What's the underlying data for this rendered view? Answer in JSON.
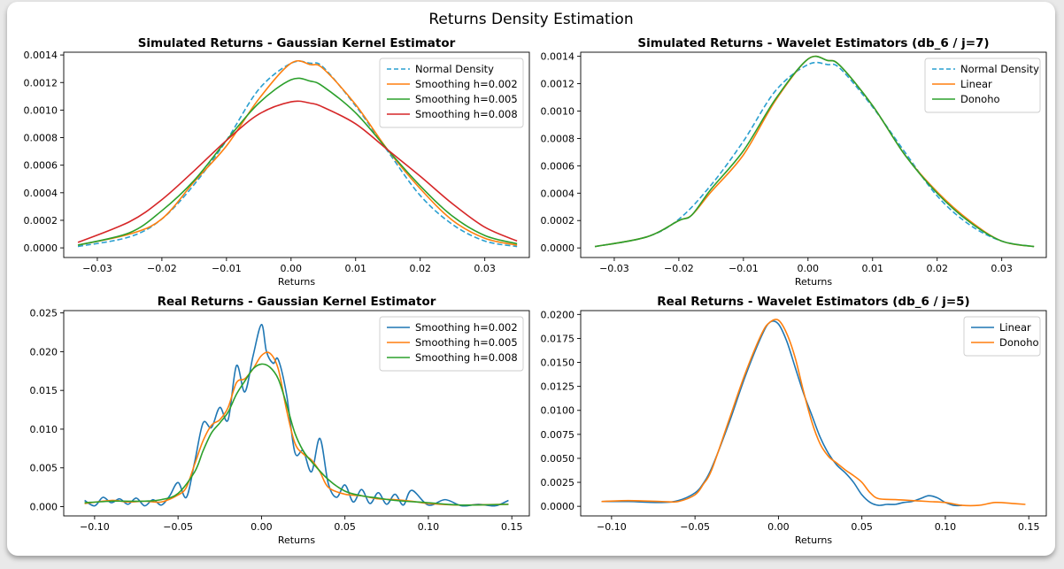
{
  "figure": {
    "title": "Returns Density Estimation"
  },
  "colors": {
    "blue": "#1f77b4",
    "normal": "#2a9fd0",
    "orange": "#ff7f0e",
    "green": "#2ca02c",
    "red": "#d62728"
  },
  "chart_data": [
    {
      "type": "line",
      "title": "Simulated Returns - Gaussian Kernel Estimator",
      "xlabel": "Returns",
      "ylabel": "",
      "xlim": [
        -0.0352,
        0.0369
      ],
      "ylim": [
        -7e-05,
        0.00142
      ],
      "xticks": [
        -0.03,
        -0.02,
        -0.01,
        0.0,
        0.01,
        0.02,
        0.03
      ],
      "xtick_labels": [
        "−0.03",
        "−0.02",
        "−0.01",
        "0.00",
        "0.01",
        "0.02",
        "0.03"
      ],
      "yticks": [
        0,
        0.0002,
        0.0004,
        0.0006,
        0.0008,
        0.001,
        0.0012,
        0.0014
      ],
      "ytick_labels": [
        "0.0000",
        "0.0002",
        "0.0004",
        "0.0006",
        "0.0008",
        "0.0010",
        "0.0012",
        "0.0014"
      ],
      "legend_position": "top-right",
      "series": [
        {
          "name": "Normal Density",
          "color": "#2a9fd0",
          "dash": true,
          "x": [
            -0.033,
            -0.025,
            -0.02,
            -0.015,
            -0.01,
            -0.005,
            0.0,
            0.003,
            0.005,
            0.01,
            0.015,
            0.02,
            0.025,
            0.03,
            0.035
          ],
          "y": [
            1e-05,
            8e-05,
            0.00021,
            0.00046,
            0.00078,
            0.00115,
            0.00134,
            0.00134,
            0.00131,
            0.00103,
            0.0007,
            0.00038,
            0.00017,
            5e-05,
            1e-05
          ]
        },
        {
          "name": "Smoothing h=0.002",
          "color": "#ff7f0e",
          "x": [
            -0.033,
            -0.025,
            -0.02,
            -0.015,
            -0.01,
            -0.005,
            0.0,
            0.003,
            0.005,
            0.01,
            0.015,
            0.02,
            0.025,
            0.03,
            0.035
          ],
          "y": [
            2e-05,
            0.0001,
            0.00021,
            0.00048,
            0.00074,
            0.00108,
            0.00134,
            0.00133,
            0.0013,
            0.00104,
            0.00071,
            0.00043,
            0.0002,
            7e-05,
            2e-05
          ]
        },
        {
          "name": "Smoothing h=0.005",
          "color": "#2ca02c",
          "x": [
            -0.033,
            -0.025,
            -0.02,
            -0.015,
            -0.01,
            -0.005,
            0.0,
            0.003,
            0.005,
            0.01,
            0.015,
            0.02,
            0.025,
            0.03,
            0.035
          ],
          "y": [
            2e-05,
            0.00011,
            0.00027,
            0.00049,
            0.00078,
            0.00105,
            0.00122,
            0.00121,
            0.00117,
            0.00098,
            0.00071,
            0.00045,
            0.00023,
            9e-05,
            3e-05
          ]
        },
        {
          "name": "Smoothing h=0.008",
          "color": "#d62728",
          "x": [
            -0.033,
            -0.025,
            -0.02,
            -0.015,
            -0.01,
            -0.005,
            0.0,
            0.003,
            0.005,
            0.01,
            0.015,
            0.02,
            0.025,
            0.03,
            0.035
          ],
          "y": [
            4e-05,
            0.00019,
            0.00035,
            0.00056,
            0.00078,
            0.00097,
            0.00106,
            0.00105,
            0.00102,
            0.0009,
            0.00071,
            0.00052,
            0.00032,
            0.00015,
            5e-05
          ]
        }
      ]
    },
    {
      "type": "line",
      "title": "Simulated Returns - Wavelet Estimators (db_6 / j=7)",
      "xlabel": "Returns",
      "ylabel": "",
      "xlim": [
        -0.0352,
        0.0369
      ],
      "ylim": [
        -7e-05,
        0.00143
      ],
      "xticks": [
        -0.03,
        -0.02,
        -0.01,
        0.0,
        0.01,
        0.02,
        0.03
      ],
      "xtick_labels": [
        "−0.03",
        "−0.02",
        "−0.01",
        "0.00",
        "0.01",
        "0.02",
        "0.03"
      ],
      "yticks": [
        0,
        0.0002,
        0.0004,
        0.0006,
        0.0008,
        0.001,
        0.0012,
        0.0014
      ],
      "ytick_labels": [
        "0.0000",
        "0.0002",
        "0.0004",
        "0.0006",
        "0.0008",
        "0.0010",
        "0.0012",
        "0.0014"
      ],
      "legend_position": "top-right",
      "series": [
        {
          "name": "Normal Density",
          "color": "#2a9fd0",
          "dash": true,
          "x": [
            -0.033,
            -0.025,
            -0.02,
            -0.015,
            -0.01,
            -0.005,
            0.0,
            0.003,
            0.005,
            0.01,
            0.015,
            0.02,
            0.025,
            0.03,
            0.035
          ],
          "y": [
            1e-05,
            8e-05,
            0.00021,
            0.00046,
            0.00078,
            0.00115,
            0.00134,
            0.00134,
            0.00131,
            0.00103,
            0.0007,
            0.00038,
            0.00017,
            5e-05,
            1e-05
          ]
        },
        {
          "name": "Linear",
          "color": "#ff7f0e",
          "x": [
            -0.033,
            -0.025,
            -0.02,
            -0.018,
            -0.015,
            -0.01,
            -0.005,
            0.0,
            0.003,
            0.005,
            0.01,
            0.015,
            0.02,
            0.025,
            0.03,
            0.035
          ],
          "y": [
            1e-05,
            8e-05,
            0.0002,
            0.00024,
            0.00041,
            0.00068,
            0.00108,
            0.00138,
            0.00137,
            0.00133,
            0.00104,
            0.00068,
            0.00041,
            0.0002,
            5e-05,
            1e-05
          ]
        },
        {
          "name": "Donoho",
          "color": "#2ca02c",
          "x": [
            -0.033,
            -0.025,
            -0.02,
            -0.018,
            -0.015,
            -0.01,
            -0.005,
            0.0,
            0.003,
            0.005,
            0.01,
            0.015,
            0.02,
            0.025,
            0.03,
            0.035
          ],
          "y": [
            1e-05,
            8e-05,
            0.0002,
            0.00024,
            0.00043,
            0.00071,
            0.00109,
            0.00138,
            0.00137,
            0.00133,
            0.00104,
            0.00068,
            0.0004,
            0.00019,
            5e-05,
            1e-05
          ]
        }
      ]
    },
    {
      "type": "line",
      "title": "Real Returns - Gaussian Kernel Estimator",
      "xlabel": "Returns",
      "ylabel": "",
      "xlim": [
        -0.1185,
        0.1605
      ],
      "ylim": [
        -0.0012,
        0.0253
      ],
      "xticks": [
        -0.1,
        -0.05,
        0.0,
        0.05,
        0.1,
        0.15
      ],
      "xtick_labels": [
        "−0.10",
        "−0.05",
        "0.00",
        "0.05",
        "0.10",
        "0.15"
      ],
      "yticks": [
        0,
        0.005,
        0.01,
        0.015,
        0.02,
        0.025
      ],
      "ytick_labels": [
        "0.000",
        "0.005",
        "0.010",
        "0.015",
        "0.020",
        "0.025"
      ],
      "legend_position": "top-right",
      "series": [
        {
          "name": "Smoothing h=0.002",
          "color": "#1f77b4",
          "x": [
            -0.106,
            -0.1,
            -0.095,
            -0.09,
            -0.085,
            -0.08,
            -0.075,
            -0.07,
            -0.065,
            -0.06,
            -0.055,
            -0.05,
            -0.045,
            -0.04,
            -0.035,
            -0.03,
            -0.025,
            -0.02,
            -0.015,
            -0.01,
            -0.005,
            0.0,
            0.003,
            0.007,
            0.01,
            0.015,
            0.02,
            0.025,
            0.03,
            0.035,
            0.04,
            0.045,
            0.05,
            0.055,
            0.06,
            0.065,
            0.07,
            0.075,
            0.08,
            0.085,
            0.09,
            0.1,
            0.11,
            0.12,
            0.13,
            0.14,
            0.148
          ],
          "y": [
            0.0008,
            0.0001,
            0.0012,
            0.0005,
            0.001,
            0.0003,
            0.0011,
            0.0001,
            0.0009,
            0.0002,
            0.0014,
            0.0031,
            0.0012,
            0.0058,
            0.0108,
            0.0102,
            0.0128,
            0.0112,
            0.0182,
            0.0148,
            0.0195,
            0.0235,
            0.02,
            0.0185,
            0.019,
            0.0145,
            0.007,
            0.0072,
            0.0045,
            0.0088,
            0.003,
            0.0012,
            0.0028,
            0.0006,
            0.0022,
            0.0004,
            0.0018,
            0.0003,
            0.0016,
            0.0002,
            0.0021,
            0.0002,
            0.0009,
            0.0001,
            0.0003,
            0.0001,
            0.0008
          ]
        },
        {
          "name": "Smoothing h=0.005",
          "color": "#ff7f0e",
          "x": [
            -0.106,
            -0.09,
            -0.08,
            -0.07,
            -0.06,
            -0.05,
            -0.045,
            -0.04,
            -0.035,
            -0.03,
            -0.025,
            -0.02,
            -0.015,
            -0.01,
            -0.005,
            0.0,
            0.005,
            0.01,
            0.015,
            0.02,
            0.025,
            0.03,
            0.035,
            0.04,
            0.05,
            0.06,
            0.07,
            0.08,
            0.09,
            0.1,
            0.12,
            0.148
          ],
          "y": [
            0.0004,
            0.0008,
            0.0006,
            0.0007,
            0.0006,
            0.0015,
            0.0025,
            0.0055,
            0.0085,
            0.0105,
            0.0112,
            0.0128,
            0.016,
            0.0165,
            0.0178,
            0.0195,
            0.0198,
            0.0178,
            0.0125,
            0.0082,
            0.0068,
            0.006,
            0.0045,
            0.0025,
            0.0016,
            0.0014,
            0.001,
            0.0009,
            0.0007,
            0.0004,
            0.0002,
            0.0003
          ]
        },
        {
          "name": "Smoothing h=0.008",
          "color": "#2ca02c",
          "x": [
            -0.106,
            -0.09,
            -0.08,
            -0.07,
            -0.06,
            -0.05,
            -0.04,
            -0.035,
            -0.03,
            -0.025,
            -0.02,
            -0.015,
            -0.01,
            -0.005,
            0.0,
            0.005,
            0.01,
            0.015,
            0.02,
            0.025,
            0.03,
            0.04,
            0.05,
            0.06,
            0.07,
            0.08,
            0.1,
            0.12,
            0.148
          ],
          "y": [
            0.0005,
            0.0007,
            0.0007,
            0.0007,
            0.0009,
            0.0017,
            0.0045,
            0.0072,
            0.0095,
            0.0108,
            0.0122,
            0.0145,
            0.0162,
            0.0178,
            0.0184,
            0.018,
            0.0165,
            0.0132,
            0.0095,
            0.0072,
            0.0058,
            0.0035,
            0.002,
            0.0014,
            0.0011,
            0.0008,
            0.0005,
            0.0002,
            0.0003
          ]
        }
      ]
    },
    {
      "type": "line",
      "title": "Real Returns - Wavelet Estimators (db_6 / j=5)",
      "xlabel": "Returns",
      "ylabel": "",
      "xlim": [
        -0.1185,
        0.1605
      ],
      "ylim": [
        -0.001,
        0.0204
      ],
      "xticks": [
        -0.1,
        -0.05,
        0.0,
        0.05,
        0.1,
        0.15
      ],
      "xtick_labels": [
        "−0.10",
        "−0.05",
        "0.00",
        "0.05",
        "0.10",
        "0.15"
      ],
      "yticks": [
        0,
        0.0025,
        0.005,
        0.0075,
        0.01,
        0.0125,
        0.015,
        0.0175,
        0.02
      ],
      "ytick_labels": [
        "0.0000",
        "0.0025",
        "0.0050",
        "0.0075",
        "0.0100",
        "0.0125",
        "0.0150",
        "0.0175",
        "0.0200"
      ],
      "legend_position": "top-right",
      "series": [
        {
          "name": "Linear",
          "color": "#1f77b4",
          "x": [
            -0.106,
            -0.09,
            -0.07,
            -0.06,
            -0.05,
            -0.045,
            -0.04,
            -0.03,
            -0.02,
            -0.01,
            -0.005,
            0.0,
            0.005,
            0.01,
            0.015,
            0.02,
            0.025,
            0.03,
            0.035,
            0.04,
            0.045,
            0.05,
            0.055,
            0.06,
            0.065,
            0.07,
            0.075,
            0.08,
            0.085,
            0.09,
            0.095,
            0.1,
            0.105,
            0.11
          ],
          "y": [
            0.0005,
            0.0005,
            0.0004,
            0.0006,
            0.0014,
            0.0024,
            0.004,
            0.0085,
            0.0135,
            0.0178,
            0.0192,
            0.019,
            0.0172,
            0.0145,
            0.0118,
            0.0095,
            0.0072,
            0.0055,
            0.0043,
            0.0035,
            0.0025,
            0.0012,
            0.0004,
            0.0001,
            0.0002,
            0.0002,
            0.0004,
            0.0005,
            0.0008,
            0.0011,
            0.0009,
            0.0004,
            0.0001,
            0.0001
          ]
        },
        {
          "name": "Donoho",
          "color": "#ff7f0e",
          "x": [
            -0.106,
            -0.09,
            -0.07,
            -0.06,
            -0.05,
            -0.045,
            -0.04,
            -0.03,
            -0.02,
            -0.01,
            -0.005,
            0.0,
            0.005,
            0.01,
            0.015,
            0.02,
            0.025,
            0.03,
            0.035,
            0.04,
            0.045,
            0.05,
            0.055,
            0.06,
            0.07,
            0.08,
            0.09,
            0.1,
            0.11,
            0.12,
            0.13,
            0.14,
            0.148
          ],
          "y": [
            0.0005,
            0.0006,
            0.0005,
            0.0005,
            0.0012,
            0.0023,
            0.0038,
            0.0088,
            0.0138,
            0.018,
            0.0192,
            0.0194,
            0.018,
            0.0155,
            0.012,
            0.0088,
            0.0065,
            0.0052,
            0.0045,
            0.0038,
            0.0032,
            0.0025,
            0.0014,
            0.0008,
            0.0007,
            0.0006,
            0.0005,
            0.0004,
            0.0001,
            0.0001,
            0.0004,
            0.0003,
            0.0002
          ]
        }
      ]
    }
  ]
}
